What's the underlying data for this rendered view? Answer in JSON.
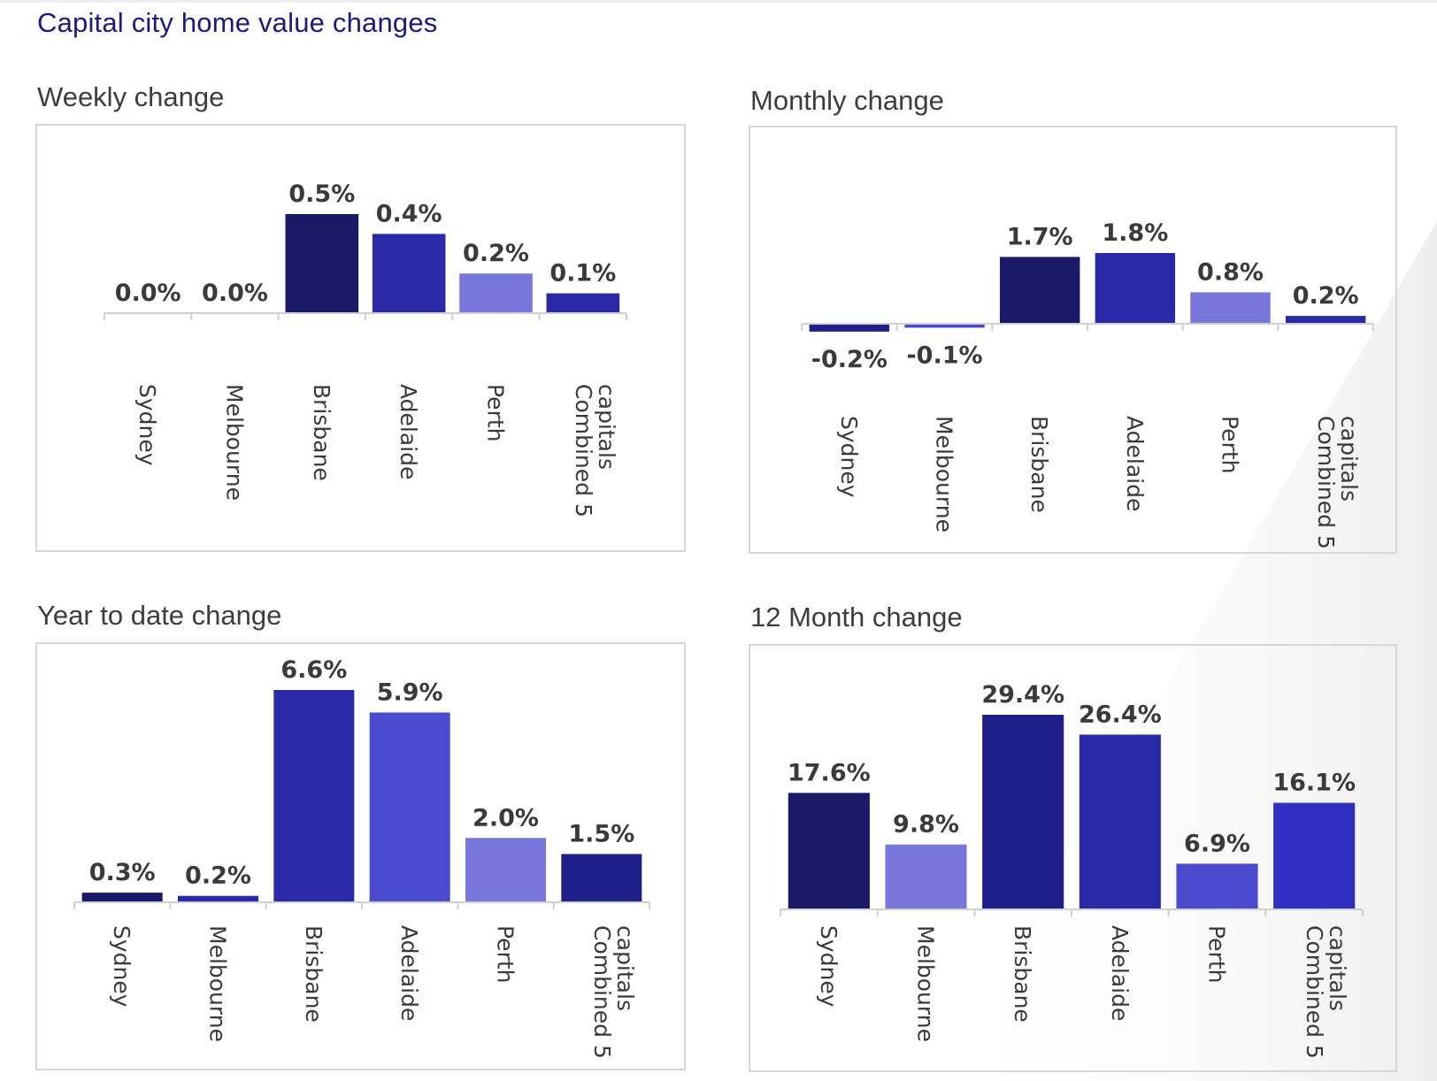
{
  "page": {
    "title": "Capital city home value changes"
  },
  "colors": {
    "navy": "#1a1a68",
    "dark_blue": "#1f1f8a",
    "royal": "#2a2aa8",
    "violet": "#4b4bd0",
    "periwinkle": "#7878dc",
    "bright": "#2f2fc0"
  },
  "chart_data": [
    {
      "type": "bar",
      "title": "Weekly change",
      "categories": [
        "Sydney",
        "Melbourne",
        "Brisbane",
        "Adelaide",
        "Perth",
        "Combined 5 capitals"
      ],
      "values": [
        0.0,
        0.0,
        0.5,
        0.4,
        0.2,
        0.1
      ],
      "value_labels": [
        "0.0%",
        "0.0%",
        "0.5%",
        "0.4%",
        "0.2%",
        "0.1%"
      ],
      "colors": [
        "#1a1a68",
        "#1a1a68",
        "#1a1a68",
        "#2a2aa8",
        "#7878dc",
        "#2a2aa8"
      ],
      "ylim": [
        0,
        0.5
      ],
      "grid": false,
      "unit": "%"
    },
    {
      "type": "bar",
      "title": "Monthly change",
      "categories": [
        "Sydney",
        "Melbourne",
        "Brisbane",
        "Adelaide",
        "Perth",
        "Combined 5 capitals"
      ],
      "values": [
        -0.2,
        -0.1,
        1.7,
        1.8,
        0.8,
        0.2
      ],
      "value_labels": [
        "-0.2%",
        "-0.1%",
        "1.7%",
        "1.8%",
        "0.8%",
        "0.2%"
      ],
      "colors": [
        "#1f1f8a",
        "#4b4bd0",
        "#1a1a68",
        "#2a2aa8",
        "#7878dc",
        "#2a2aa8"
      ],
      "ylim": [
        -0.2,
        1.8
      ],
      "grid": false,
      "unit": "%"
    },
    {
      "type": "bar",
      "title": "Year to date change",
      "categories": [
        "Sydney",
        "Melbourne",
        "Brisbane",
        "Adelaide",
        "Perth",
        "Combined 5 capitals"
      ],
      "values": [
        0.3,
        0.2,
        6.6,
        5.9,
        2.0,
        1.5
      ],
      "value_labels": [
        "0.3%",
        "0.2%",
        "6.6%",
        "5.9%",
        "2.0%",
        "1.5%"
      ],
      "colors": [
        "#1a1a68",
        "#2a2aa8",
        "#2a2aa8",
        "#4b4bd0",
        "#7878dc",
        "#1f1f8a"
      ],
      "ylim": [
        0,
        6.6
      ],
      "grid": false,
      "unit": "%"
    },
    {
      "type": "bar",
      "title": "12 Month change",
      "categories": [
        "Sydney",
        "Melbourne",
        "Brisbane",
        "Adelaide",
        "Perth",
        "Combined 5 capitals"
      ],
      "values": [
        17.6,
        9.8,
        29.4,
        26.4,
        6.9,
        16.1
      ],
      "value_labels": [
        "17.6%",
        "9.8%",
        "29.4%",
        "26.4%",
        "6.9%",
        "16.1%"
      ],
      "colors": [
        "#1a1a68",
        "#7878dc",
        "#1f1f8a",
        "#2a2aa8",
        "#4b4bd0",
        "#2f2fc0"
      ],
      "ylim": [
        0,
        29.4
      ],
      "grid": false,
      "unit": "%"
    }
  ]
}
